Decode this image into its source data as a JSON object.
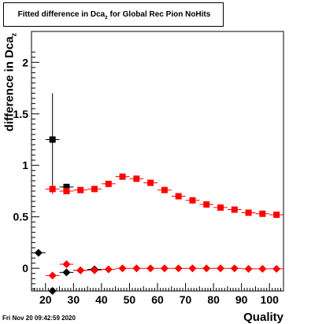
{
  "title": {
    "main": "Fitted difference in Dca",
    "sub": "z",
    "rest": " for Global Rec Pion NoHits"
  },
  "ylabel": {
    "main": "difference in Dca",
    "sub": "z"
  },
  "xlabel": "Quality",
  "timestamp": "Fri Nov 20 09:42:59 2020",
  "colors": {
    "red": "#ff0000",
    "black": "#000000"
  },
  "chart_data": {
    "type": "scatter",
    "title": "Fitted difference in Dca_z for Global Rec Pion NoHits",
    "xlabel": "Quality",
    "ylabel": "difference in Dca_z",
    "xlim": [
      15,
      105
    ],
    "ylim": [
      -0.22,
      2.3
    ],
    "x_ticks": [
      20,
      30,
      40,
      50,
      60,
      70,
      80,
      90,
      100
    ],
    "y_ticks": [
      0,
      0.5,
      1,
      1.5,
      2
    ],
    "y_tick_labels": [
      "0",
      "0.5",
      "1",
      "1.5",
      "2"
    ],
    "series": [
      {
        "marker": "square",
        "color": "#000000",
        "points": [
          {
            "x": 22.5,
            "y": 1.25,
            "yerr": 0.45
          },
          {
            "x": 27.5,
            "y": 0.79,
            "yerr": 0.0
          }
        ]
      },
      {
        "marker": "square",
        "color": "#ff0000",
        "points": [
          {
            "x": 22.5,
            "y": 0.77,
            "yerr": 0.05
          },
          {
            "x": 27.5,
            "y": 0.75,
            "yerr": 0.02
          },
          {
            "x": 32.5,
            "y": 0.76,
            "yerr": 0.02
          },
          {
            "x": 37.5,
            "y": 0.77,
            "yerr": 0.02
          },
          {
            "x": 42.5,
            "y": 0.82,
            "yerr": 0.02
          },
          {
            "x": 47.5,
            "y": 0.89,
            "yerr": 0.02
          },
          {
            "x": 52.5,
            "y": 0.87,
            "yerr": 0.02
          },
          {
            "x": 57.5,
            "y": 0.83,
            "yerr": 0.02
          },
          {
            "x": 62.5,
            "y": 0.76,
            "yerr": 0.02
          },
          {
            "x": 67.5,
            "y": 0.7,
            "yerr": 0.01
          },
          {
            "x": 72.5,
            "y": 0.66,
            "yerr": 0.01
          },
          {
            "x": 77.5,
            "y": 0.62,
            "yerr": 0.01
          },
          {
            "x": 82.5,
            "y": 0.59,
            "yerr": 0.01
          },
          {
            "x": 87.5,
            "y": 0.57,
            "yerr": 0.01
          },
          {
            "x": 92.5,
            "y": 0.54,
            "yerr": 0.01
          },
          {
            "x": 97.5,
            "y": 0.53,
            "yerr": 0.01
          },
          {
            "x": 102.5,
            "y": 0.52,
            "yerr": 0.01
          }
        ]
      },
      {
        "marker": "diamond",
        "color": "#000000",
        "points": [
          {
            "x": 17.5,
            "y": 0.15,
            "yerr": 0.0
          },
          {
            "x": 22.5,
            "y": -0.22,
            "yerr": 0.0
          },
          {
            "x": 27.5,
            "y": -0.04,
            "yerr": 0.0
          },
          {
            "x": 32.5,
            "y": -0.02,
            "yerr": 0.0
          },
          {
            "x": 37.5,
            "y": -0.01,
            "yerr": 0.0
          }
        ]
      },
      {
        "marker": "diamond",
        "color": "#ff0000",
        "points": [
          {
            "x": 22.5,
            "y": -0.07,
            "yerr": 0.02
          },
          {
            "x": 27.5,
            "y": 0.04,
            "yerr": 0.01
          },
          {
            "x": 32.5,
            "y": -0.02,
            "yerr": 0.01
          },
          {
            "x": 37.5,
            "y": -0.02,
            "yerr": 0.01
          },
          {
            "x": 42.5,
            "y": -0.01,
            "yerr": 0.0
          },
          {
            "x": 47.5,
            "y": 0.0,
            "yerr": 0.0
          },
          {
            "x": 52.5,
            "y": 0.0,
            "yerr": 0.0
          },
          {
            "x": 57.5,
            "y": 0.0,
            "yerr": 0.0
          },
          {
            "x": 62.5,
            "y": 0.0,
            "yerr": 0.0
          },
          {
            "x": 67.5,
            "y": 0.0,
            "yerr": 0.0
          },
          {
            "x": 72.5,
            "y": 0.0,
            "yerr": 0.0
          },
          {
            "x": 77.5,
            "y": 0.0,
            "yerr": 0.0
          },
          {
            "x": 82.5,
            "y": 0.0,
            "yerr": 0.0
          },
          {
            "x": 87.5,
            "y": 0.0,
            "yerr": 0.0
          },
          {
            "x": 92.5,
            "y": -0.005,
            "yerr": 0.0
          },
          {
            "x": 97.5,
            "y": -0.005,
            "yerr": 0.0
          },
          {
            "x": 102.5,
            "y": -0.005,
            "yerr": 0.0
          }
        ]
      }
    ],
    "bin_half_width": 2.5,
    "grid": false,
    "legend": "none"
  }
}
